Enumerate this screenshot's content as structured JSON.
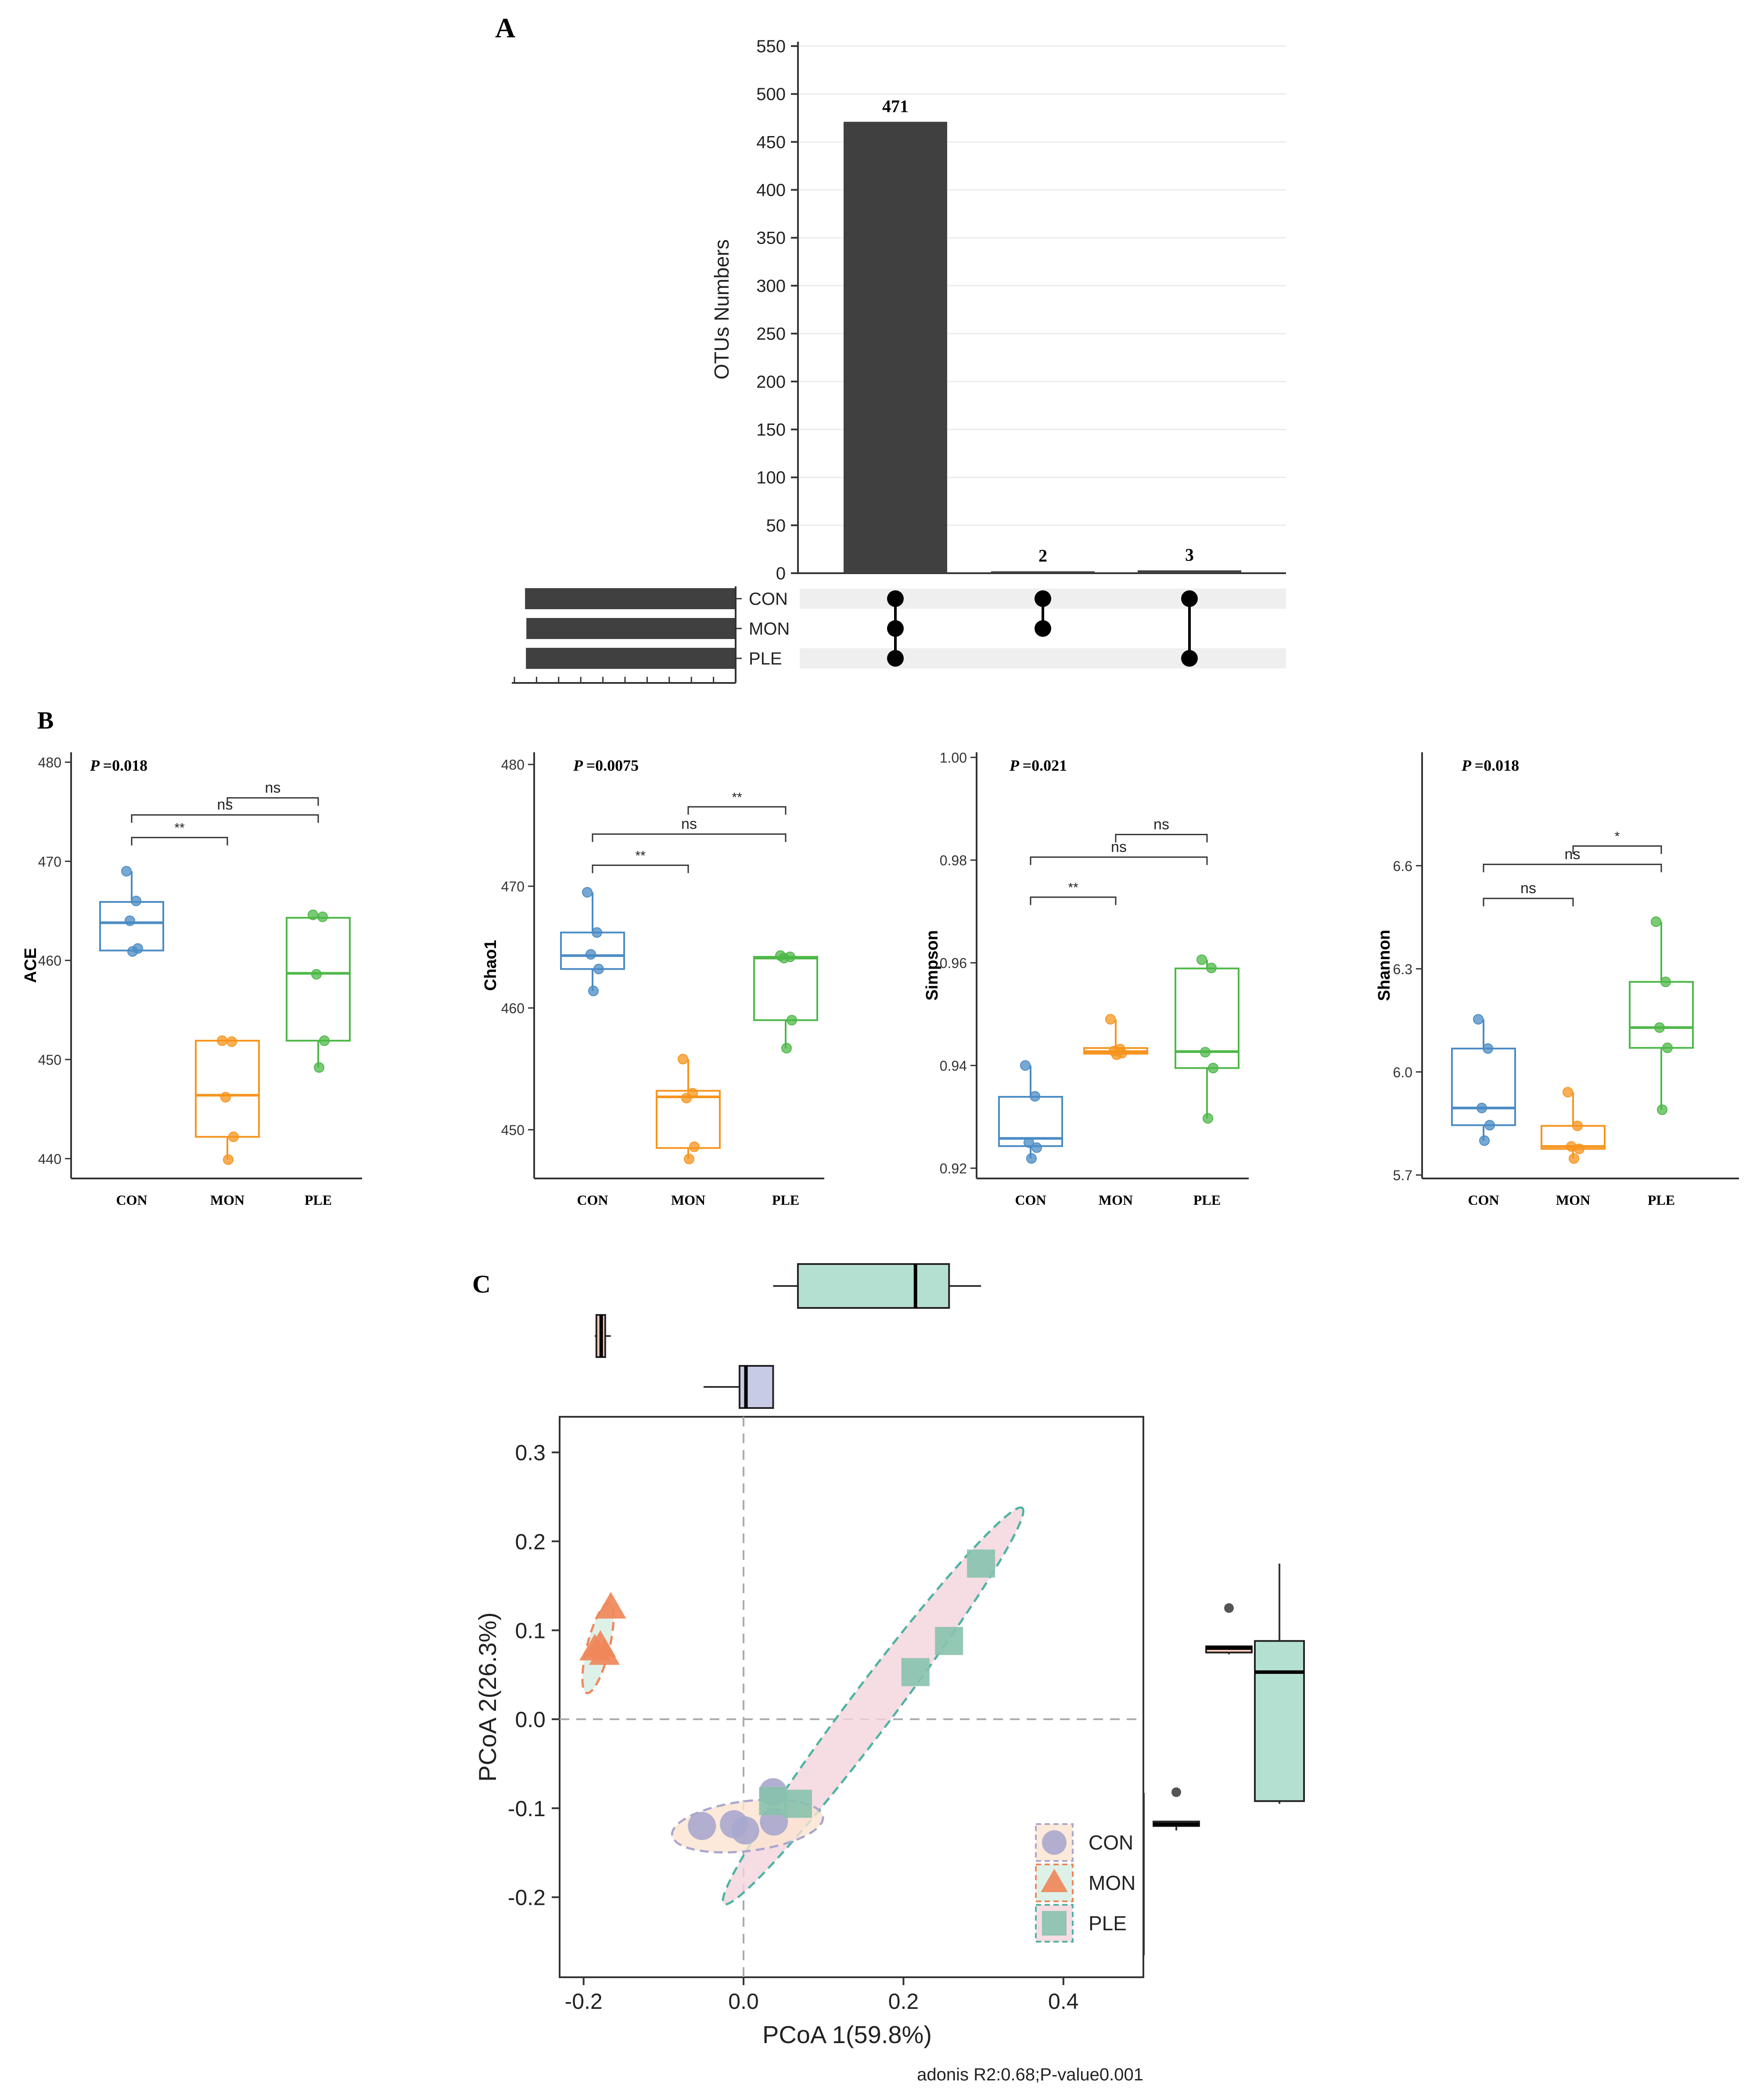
{
  "panels": {
    "A": {
      "label": "A"
    },
    "B": {
      "label": "B"
    },
    "C": {
      "label": "C"
    }
  },
  "chart_data": [
    {
      "id": "upset",
      "type": "bar",
      "title": "",
      "ylabel": "OTUs Numbers",
      "ylim": [
        0,
        550
      ],
      "yticks": [
        0,
        50,
        100,
        150,
        200,
        250,
        300,
        350,
        400,
        450,
        500,
        550
      ],
      "categories": [
        "CON-MON-PLE",
        "CON-MON",
        "CON-PLE"
      ],
      "values": [
        471,
        2,
        3
      ],
      "value_labels": [
        "471",
        "2",
        "3"
      ],
      "set_names": [
        "CON",
        "MON",
        "PLE"
      ],
      "membership": [
        [
          1,
          1,
          1
        ],
        [
          1,
          1,
          0
        ],
        [
          1,
          0,
          1
        ]
      ],
      "set_sizes": [
        476,
        473,
        474
      ],
      "set_size_max": 500,
      "colors": {
        "bar": "#404040",
        "dot": "#000000",
        "stripe": "#efefef"
      }
    },
    {
      "id": "ace",
      "type": "box",
      "ylabel": "ACE",
      "pvalue": "=0.018",
      "ylim": [
        438,
        481
      ],
      "yticks": [
        440,
        450,
        460,
        470,
        480
      ],
      "groups": [
        "CON",
        "MON",
        "PLE"
      ],
      "colors": [
        "#4a8bc4",
        "#f7941d",
        "#4db848"
      ],
      "boxes": [
        {
          "q1": 461.0,
          "median": 463.8,
          "q3": 465.9,
          "lo": 460.9,
          "hi": 469.0,
          "points": [
            469.0,
            466.0,
            464.0,
            461.2,
            460.9
          ]
        },
        {
          "q1": 442.2,
          "median": 446.4,
          "q3": 451.9,
          "lo": 439.9,
          "hi": 451.9,
          "points": [
            451.9,
            451.8,
            446.2,
            442.2,
            439.9
          ]
        },
        {
          "q1": 451.9,
          "median": 458.7,
          "q3": 464.3,
          "lo": 449.2,
          "hi": 464.6,
          "points": [
            464.6,
            464.4,
            458.6,
            451.9,
            449.2
          ]
        }
      ],
      "comparisons": [
        {
          "from": 0,
          "to": 1,
          "label": "**",
          "level": 0
        },
        {
          "from": 0,
          "to": 2,
          "label": "ns",
          "level": 1
        },
        {
          "from": 1,
          "to": 2,
          "label": "ns",
          "level": 2
        }
      ]
    },
    {
      "id": "chao1",
      "type": "box",
      "ylabel": "Chao1",
      "pvalue": "=0.0075",
      "ylim": [
        446,
        481
      ],
      "yticks": [
        450,
        460,
        470,
        480
      ],
      "groups": [
        "CON",
        "MON",
        "PLE"
      ],
      "colors": [
        "#4a8bc4",
        "#f7941d",
        "#4db848"
      ],
      "boxes": [
        {
          "q1": 463.2,
          "median": 464.3,
          "q3": 466.2,
          "lo": 461.4,
          "hi": 469.5,
          "points": [
            469.5,
            466.2,
            464.4,
            463.2,
            461.4
          ]
        },
        {
          "q1": 448.5,
          "median": 452.7,
          "q3": 453.2,
          "lo": 447.6,
          "hi": 455.8,
          "points": [
            455.8,
            453.0,
            452.6,
            448.6,
            447.6
          ]
        },
        {
          "q1": 459.0,
          "median": 464.1,
          "q3": 464.2,
          "lo": 456.7,
          "hi": 464.3,
          "points": [
            464.3,
            464.2,
            464.1,
            459.0,
            456.7
          ]
        }
      ],
      "comparisons": [
        {
          "from": 0,
          "to": 1,
          "label": "**",
          "level": 0
        },
        {
          "from": 0,
          "to": 2,
          "label": "ns",
          "level": 1
        },
        {
          "from": 1,
          "to": 2,
          "label": "**",
          "level": 2
        }
      ]
    },
    {
      "id": "simpson",
      "type": "box",
      "ylabel": "Simpson",
      "pvalue": "=0.021",
      "ylim": [
        0.918,
        1.001
      ],
      "yticks": [
        0.92,
        0.94,
        0.96,
        0.98,
        1.0
      ],
      "yticklabels": [
        "0.92",
        "0.94",
        "0.96",
        "0.98",
        "1.00"
      ],
      "groups": [
        "CON",
        "MON",
        "PLE"
      ],
      "colors": [
        "#4a8bc4",
        "#f7941d",
        "#4db848"
      ],
      "boxes": [
        {
          "q1": 0.9243,
          "median": 0.9258,
          "q3": 0.9339,
          "lo": 0.9219,
          "hi": 0.94,
          "points": [
            0.94,
            0.934,
            0.925,
            0.924,
            0.9219
          ]
        },
        {
          "q1": 0.9423,
          "median": 0.9427,
          "q3": 0.9434,
          "lo": 0.9421,
          "hi": 0.949,
          "points": [
            0.949,
            0.9432,
            0.9428,
            0.9424,
            0.9421
          ]
        },
        {
          "q1": 0.9395,
          "median": 0.9427,
          "q3": 0.9589,
          "lo": 0.9297,
          "hi": 0.9606,
          "points": [
            0.9606,
            0.959,
            0.9426,
            0.9395,
            0.9297
          ]
        }
      ],
      "comparisons": [
        {
          "from": 0,
          "to": 1,
          "label": "**",
          "level": 0
        },
        {
          "from": 0,
          "to": 2,
          "label": "ns",
          "level": 1
        },
        {
          "from": 1,
          "to": 2,
          "label": "ns",
          "level": 2
        }
      ]
    },
    {
      "id": "shannon",
      "type": "box",
      "ylabel": "Shannon",
      "pvalue": "=0.018",
      "ylim": [
        5.69,
        6.93
      ],
      "yticks": [
        5.7,
        6.0,
        6.3,
        6.6
      ],
      "yticklabels": [
        "5.7",
        "6.0",
        "6.3",
        "6.6"
      ],
      "groups": [
        "CON",
        "MON",
        "PLE"
      ],
      "colors": [
        "#4a8bc4",
        "#f7941d",
        "#4db848"
      ],
      "boxes": [
        {
          "q1": 5.845,
          "median": 5.895,
          "q3": 6.068,
          "lo": 5.8,
          "hi": 6.153,
          "points": [
            6.153,
            6.068,
            5.895,
            5.845,
            5.8
          ]
        },
        {
          "q1": 5.776,
          "median": 5.783,
          "q3": 5.843,
          "lo": 5.748,
          "hi": 5.941,
          "points": [
            5.941,
            5.843,
            5.783,
            5.776,
            5.748
          ]
        },
        {
          "q1": 6.07,
          "median": 6.129,
          "q3": 6.262,
          "lo": 5.89,
          "hi": 6.437,
          "points": [
            6.437,
            6.262,
            6.129,
            6.07,
            5.89
          ]
        }
      ],
      "comparisons": [
        {
          "from": 0,
          "to": 1,
          "label": "ns",
          "level": 0
        },
        {
          "from": 0,
          "to": 2,
          "label": "ns",
          "level": 1
        },
        {
          "from": 1,
          "to": 2,
          "label": "*",
          "level": 2
        }
      ]
    },
    {
      "id": "pcoa",
      "type": "scatter",
      "xlabel": "PCoA 1(59.8%)",
      "ylabel": "PCoA 2(26.3%)",
      "xlim": [
        -0.23,
        0.5
      ],
      "ylim": [
        -0.29,
        0.34
      ],
      "xticks": [
        -0.2,
        0.0,
        0.2,
        0.4
      ],
      "xticklabels": [
        "-0.2",
        "0.0",
        "0.2",
        "0.4"
      ],
      "yticks": [
        -0.2,
        -0.1,
        0.0,
        0.1,
        0.2,
        0.3
      ],
      "yticklabels": [
        "-0.2",
        "-0.1",
        "0.0",
        "0.1",
        "0.2",
        "0.3"
      ],
      "note": "adonis R2:0.68;P-value0.001",
      "series": [
        {
          "name": "CON",
          "shape": "circle",
          "color": "#a9a7cd",
          "box_color": "#c8cbe6",
          "points": [
            [
              -0.052,
              -0.12
            ],
            [
              0.002,
              -0.125
            ],
            [
              0.037,
              -0.082
            ],
            [
              0.038,
              -0.115
            ],
            [
              -0.012,
              -0.118
            ]
          ],
          "ellipse": {
            "cx": 0.005,
            "cy": -0.12,
            "rx": 0.095,
            "ry": 0.028,
            "angle_deg": 7
          }
        },
        {
          "name": "MON",
          "shape": "triangle",
          "color": "#f0875a",
          "box_color": "#f7c9b6",
          "points": [
            [
              -0.166,
              0.125
            ],
            [
              -0.186,
              0.078
            ],
            [
              -0.174,
              0.073
            ],
            [
              -0.179,
              0.082
            ]
          ],
          "ellipse": {
            "cx": -0.182,
            "cy": 0.08,
            "rx": 0.014,
            "ry": 0.052,
            "angle_deg": -14
          }
        },
        {
          "name": "PLE",
          "shape": "square",
          "color": "#87c2ad",
          "box_color": "#b4e0d2",
          "points": [
            [
              0.297,
              0.175
            ],
            [
              0.257,
              0.088
            ],
            [
              0.215,
              0.053
            ],
            [
              0.037,
              -0.092
            ],
            [
              0.068,
              -0.095
            ]
          ],
          "ellipse": {
            "cx": 0.162,
            "cy": 0.015,
            "rx": 0.31,
            "ry": 0.025,
            "angle_deg": 53
          }
        }
      ],
      "marginal_x": [
        {
          "group": "CON",
          "lo": -0.05,
          "q1": -0.005,
          "median": 0.003,
          "q3": 0.037,
          "hi": 0.038
        },
        {
          "group": "MON",
          "lo": -0.186,
          "q1": -0.184,
          "median": -0.178,
          "q3": -0.173,
          "hi": -0.166
        },
        {
          "group": "PLE",
          "lo": 0.037,
          "q1": 0.068,
          "median": 0.215,
          "q3": 0.257,
          "hi": 0.297
        }
      ],
      "marginal_y": [
        {
          "group": "CON",
          "lo": -0.125,
          "q1": -0.12,
          "median": -0.118,
          "q3": -0.115,
          "hi": -0.115,
          "outlier": -0.082
        },
        {
          "group": "MON",
          "lo": 0.073,
          "q1": 0.075,
          "median": 0.08,
          "q3": 0.082,
          "hi": 0.082,
          "outlier": 0.125
        },
        {
          "group": "PLE",
          "lo": -0.095,
          "q1": -0.092,
          "median": 0.053,
          "q3": 0.088,
          "hi": 0.175
        }
      ]
    }
  ]
}
